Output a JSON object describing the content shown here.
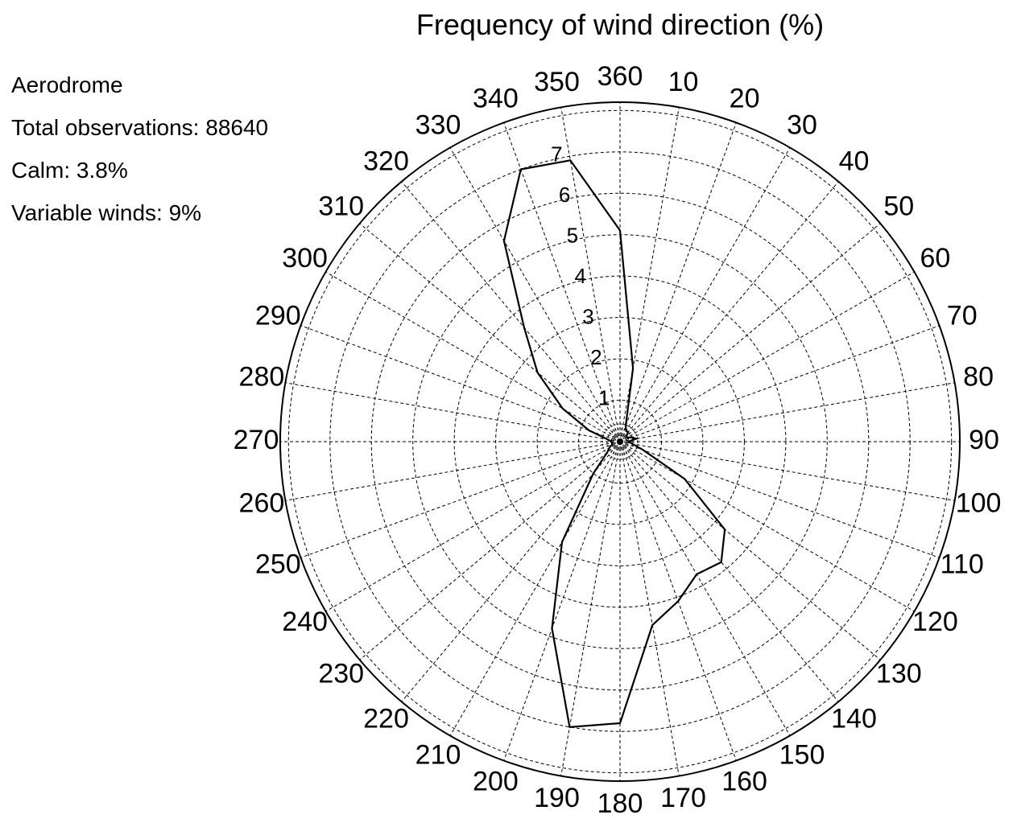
{
  "chart_data": {
    "type": "polar-line",
    "title": "Frequency of wind direction (%)",
    "info": {
      "station": "Aerodrome",
      "total_observations": "Total observations: 88640",
      "calm": "Calm: 3.8%",
      "variable": "Variable winds: 9%"
    },
    "radial_ticks": [
      "1",
      "2",
      "3",
      "4",
      "5",
      "6",
      "7"
    ],
    "radial_max": 8.2,
    "angle_labels": [
      "360",
      "10",
      "20",
      "30",
      "40",
      "50",
      "60",
      "70",
      "80",
      "90",
      "100",
      "110",
      "120",
      "130",
      "140",
      "150",
      "160",
      "170",
      "180",
      "190",
      "200",
      "210",
      "220",
      "230",
      "240",
      "250",
      "260",
      "270",
      "280",
      "290",
      "300",
      "310",
      "320",
      "330",
      "340",
      "350"
    ],
    "directions": [
      360,
      10,
      20,
      30,
      40,
      50,
      60,
      70,
      80,
      90,
      100,
      110,
      120,
      130,
      140,
      150,
      160,
      170,
      180,
      190,
      200,
      210,
      220,
      230,
      240,
      250,
      260,
      270,
      280,
      290,
      300,
      310,
      320,
      330,
      340,
      350
    ],
    "values": [
      5.1,
      1.8,
      0.4,
      0.3,
      0.3,
      0.2,
      0.2,
      0.3,
      0.4,
      0.2,
      0.3,
      0.6,
      1.8,
      3.3,
      3.8,
      3.7,
      4.1,
      4.5,
      6.8,
      7.0,
      4.8,
      2.8,
      1.0,
      0.4,
      0.3,
      0.2,
      0.2,
      0.2,
      0.3,
      0.8,
      1.6,
      2.6,
      3.6,
      5.6,
      7.0,
      6.9
    ],
    "grid": true,
    "line_color": "#000000",
    "grid_color": "#000000"
  }
}
